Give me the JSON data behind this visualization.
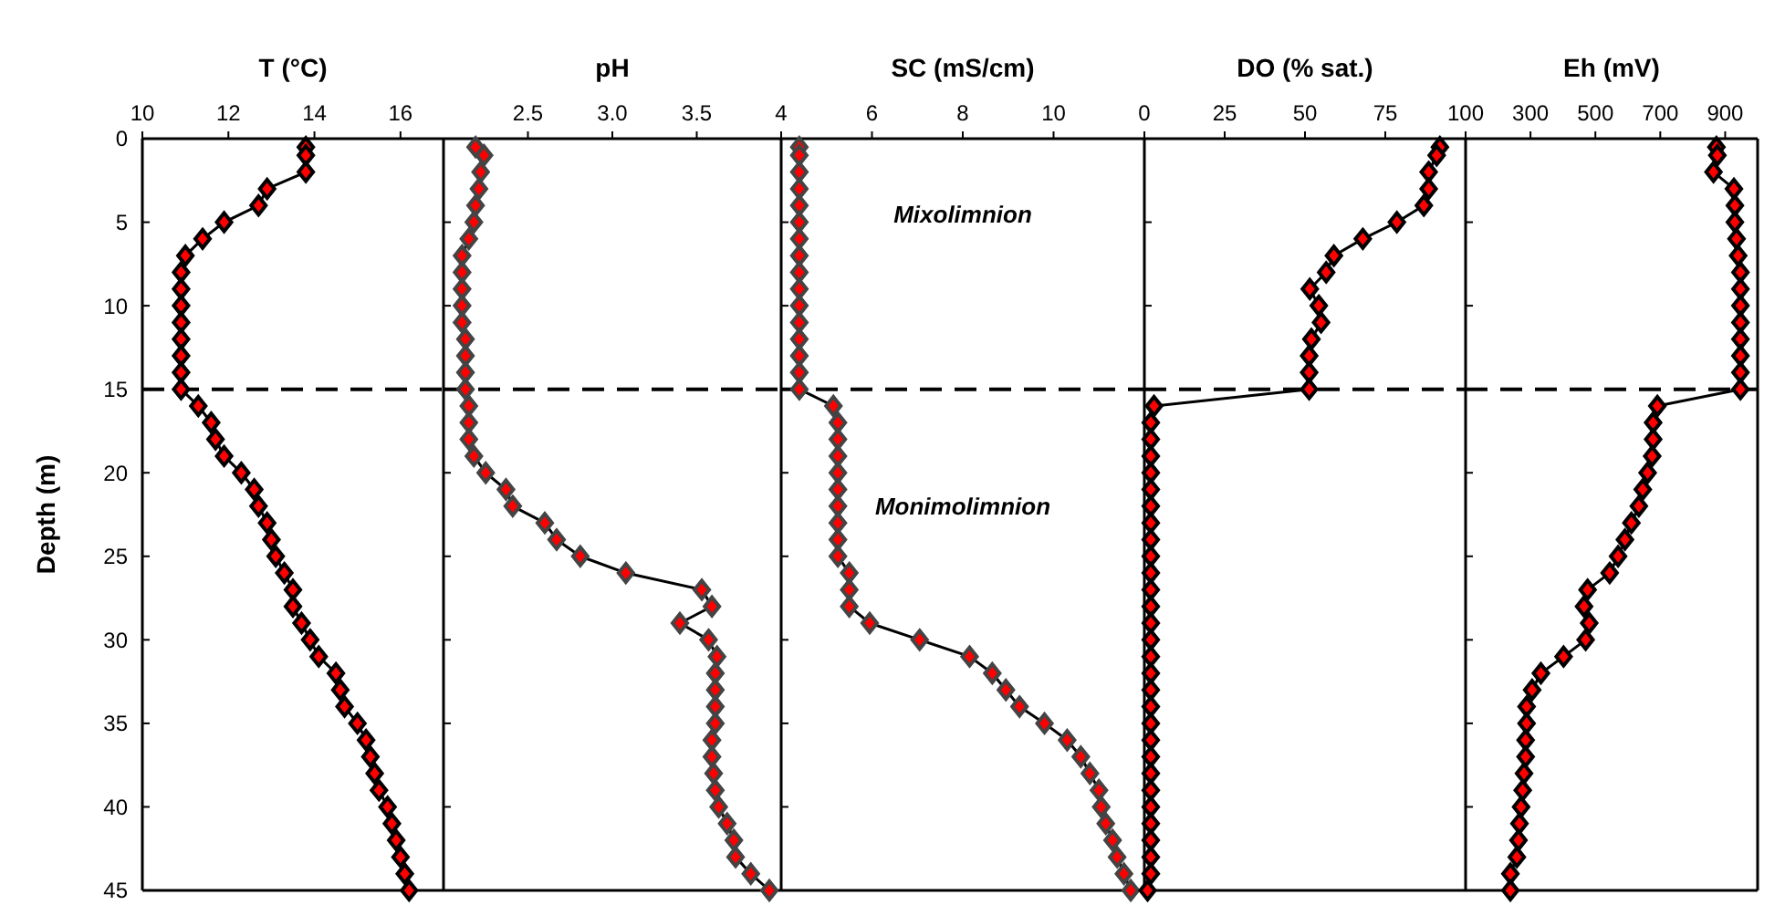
{
  "chart_data": [
    {
      "type": "line",
      "xlabel": "T (°C)",
      "ylabel": "Depth (m)",
      "xlim": [
        10,
        17
      ],
      "xticks": [
        10,
        12,
        14,
        16
      ],
      "ylim": [
        45,
        0
      ],
      "yticks": [
        0,
        5,
        10,
        15,
        20,
        25,
        30,
        35,
        40,
        45
      ],
      "marker": "diamond",
      "line_style": "solid",
      "ref_lines": [
        {
          "axis": "y",
          "value": 15,
          "color": "#000000",
          "line_style": "dashed"
        }
      ],
      "series": [
        {
          "color": "#ff0000",
          "x": [
            13.8,
            13.8,
            13.8,
            12.9,
            12.7,
            11.9,
            11.4,
            11.0,
            10.9,
            10.9,
            10.9,
            10.9,
            10.9,
            10.9,
            10.9,
            10.9,
            11.3,
            11.6,
            11.7,
            11.9,
            12.3,
            12.6,
            12.7,
            12.9,
            13.0,
            13.1,
            13.3,
            13.5,
            13.5,
            13.7,
            13.9,
            14.1,
            14.5,
            14.6,
            14.7,
            15.0,
            15.2,
            15.3,
            15.4,
            15.5,
            15.7,
            15.8,
            15.9,
            16.0,
            16.1,
            16.2
          ],
          "values": [
            0.5,
            1,
            2,
            3,
            4,
            5,
            6,
            7,
            8,
            9,
            10,
            11,
            12,
            13,
            14,
            15,
            16,
            17,
            18,
            19,
            20,
            21,
            22,
            23,
            24,
            25,
            26,
            27,
            28,
            29,
            30,
            31,
            32,
            33,
            34,
            35,
            36,
            37,
            38,
            39,
            40,
            41,
            42,
            43,
            44,
            45
          ]
        }
      ]
    },
    {
      "type": "line",
      "xlabel": "pH",
      "xlim": [
        2,
        4
      ],
      "xticks": [
        {
          "value": 2.5,
          "label": "2.5"
        },
        {
          "value": 3,
          "label": "3.0"
        },
        {
          "value": 3.5,
          "label": "3.5"
        }
      ],
      "ylim": [
        45,
        0
      ],
      "yticks": [
        0,
        5,
        10,
        15,
        20,
        25,
        30,
        35,
        40,
        45
      ],
      "tick_labels": "x",
      "marker": "diamond",
      "line_style": "solid",
      "ref_lines": [
        {
          "axis": "y",
          "value": 15,
          "color": "#000000",
          "line_style": "dashed"
        }
      ],
      "series": [
        {
          "color": "#ff0000",
          "x": [
            2.19,
            2.24,
            2.22,
            2.21,
            2.19,
            2.18,
            2.15,
            2.11,
            2.11,
            2.11,
            2.11,
            2.11,
            2.13,
            2.13,
            2.13,
            2.13,
            2.15,
            2.15,
            2.15,
            2.18,
            2.25,
            2.37,
            2.41,
            2.6,
            2.67,
            2.81,
            3.08,
            3.53,
            3.59,
            3.4,
            3.57,
            3.62,
            3.61,
            3.61,
            3.61,
            3.61,
            3.59,
            3.59,
            3.6,
            3.61,
            3.63,
            3.68,
            3.72,
            3.73,
            3.82,
            3.93
          ],
          "values": [
            0.5,
            1,
            2,
            3,
            4,
            5,
            6,
            7,
            8,
            9,
            10,
            11,
            12,
            13,
            14,
            15,
            16,
            17,
            18,
            19,
            20,
            21,
            22,
            23,
            24,
            25,
            26,
            27,
            28,
            29,
            30,
            31,
            32,
            33,
            34,
            35,
            36,
            37,
            38,
            39,
            40,
            41,
            42,
            43,
            44,
            45
          ]
        }
      ]
    },
    {
      "type": "line",
      "xlabel": "SC (mS/cm)",
      "xlim": [
        4,
        12
      ],
      "xticks": [
        4,
        6,
        8,
        10
      ],
      "ylim": [
        45,
        0
      ],
      "yticks": [
        0,
        5,
        10,
        15,
        20,
        25,
        30,
        35,
        40,
        45
      ],
      "tick_labels": "x",
      "marker": "diamond",
      "line_style": "solid",
      "ref_lines": [
        {
          "axis": "y",
          "value": 15,
          "color": "#000000",
          "line_style": "dashed"
        }
      ],
      "annotations": [
        "Mixolimnion",
        "Monimolimnion"
      ],
      "series": [
        {
          "color": "#ff0000",
          "x": [
            4.4,
            4.4,
            4.4,
            4.4,
            4.4,
            4.4,
            4.4,
            4.4,
            4.4,
            4.4,
            4.4,
            4.4,
            4.4,
            4.4,
            4.4,
            4.4,
            5.15,
            5.25,
            5.25,
            5.25,
            5.25,
            5.25,
            5.25,
            5.25,
            5.25,
            5.25,
            5.5,
            5.5,
            5.5,
            5.95,
            7.05,
            8.15,
            8.65,
            8.95,
            9.25,
            9.8,
            10.3,
            10.6,
            10.8,
            11.0,
            11.05,
            11.15,
            11.3,
            11.4,
            11.55,
            11.7
          ],
          "values": [
            0.5,
            1,
            2,
            3,
            4,
            5,
            6,
            7,
            8,
            9,
            10,
            11,
            12,
            13,
            14,
            15,
            16,
            17,
            18,
            19,
            20,
            21,
            22,
            23,
            24,
            25,
            26,
            27,
            28,
            29,
            30,
            31,
            32,
            33,
            34,
            35,
            36,
            37,
            38,
            39,
            40,
            41,
            42,
            43,
            44,
            45
          ]
        }
      ]
    },
    {
      "type": "line",
      "xlabel": "DO (% sat.)",
      "xlim": [
        0,
        100
      ],
      "xticks": [
        0,
        25,
        50,
        75
      ],
      "ylim": [
        45,
        0
      ],
      "yticks": [
        0,
        5,
        10,
        15,
        20,
        25,
        30,
        35,
        40,
        45
      ],
      "tick_labels": "x",
      "marker": "diamond",
      "line_style": "solid",
      "ref_lines": [
        {
          "axis": "y",
          "value": 15,
          "color": "#000000",
          "line_style": "dashed"
        }
      ],
      "series": [
        {
          "color": "#ff0000",
          "x": [
            92,
            91,
            88.5,
            88.5,
            87,
            78.6,
            68,
            59,
            56.6,
            51.5,
            54.3,
            55,
            52,
            51.3,
            51.3,
            51.3,
            3,
            2,
            2,
            2,
            2,
            2,
            2,
            2,
            2,
            2,
            2,
            2,
            2,
            2,
            2,
            2,
            2,
            2,
            2,
            2,
            2,
            2,
            2,
            2,
            2,
            2,
            2,
            2,
            2,
            1
          ],
          "values": [
            0.5,
            1,
            2,
            3,
            4,
            5,
            6,
            7,
            8,
            9,
            10,
            11,
            12,
            13,
            14,
            15,
            16,
            17,
            18,
            19,
            20,
            21,
            22,
            23,
            24,
            25,
            26,
            27,
            28,
            29,
            30,
            31,
            32,
            33,
            34,
            35,
            36,
            37,
            38,
            39,
            40,
            41,
            42,
            43,
            44,
            45
          ]
        }
      ]
    },
    {
      "type": "line",
      "xlabel": "Eh (mV)",
      "xlim": [
        100,
        1000
      ],
      "xticks": [
        100,
        300,
        500,
        700,
        900
      ],
      "ylim": [
        45,
        0
      ],
      "yticks": [
        0,
        5,
        10,
        15,
        20,
        25,
        30,
        35,
        40,
        45
      ],
      "tick_labels": "x",
      "marker": "diamond",
      "line_style": "solid",
      "ref_lines": [
        {
          "axis": "y",
          "value": 15,
          "color": "#000000",
          "line_style": "dashed"
        }
      ],
      "series": [
        {
          "color": "#ff0000",
          "x": [
            873,
            876,
            864,
            927,
            930,
            930,
            935,
            940,
            947,
            947,
            947,
            947,
            947,
            947,
            947,
            947,
            691,
            678,
            678,
            675,
            661,
            646,
            634,
            611,
            591,
            570,
            544,
            476,
            465,
            481,
            470,
            402,
            332,
            305,
            288,
            288,
            285,
            285,
            280,
            276,
            271,
            266,
            263,
            258,
            238,
            238
          ],
          "values": [
            0.5,
            1,
            2,
            3,
            4,
            5,
            6,
            7,
            8,
            9,
            10,
            11,
            12,
            13,
            14,
            15,
            16,
            17,
            18,
            19,
            20,
            21,
            22,
            23,
            24,
            25,
            26,
            27,
            28,
            29,
            30,
            31,
            32,
            33,
            34,
            35,
            36,
            37,
            38,
            39,
            40,
            41,
            42,
            43,
            44,
            45
          ]
        }
      ]
    }
  ]
}
